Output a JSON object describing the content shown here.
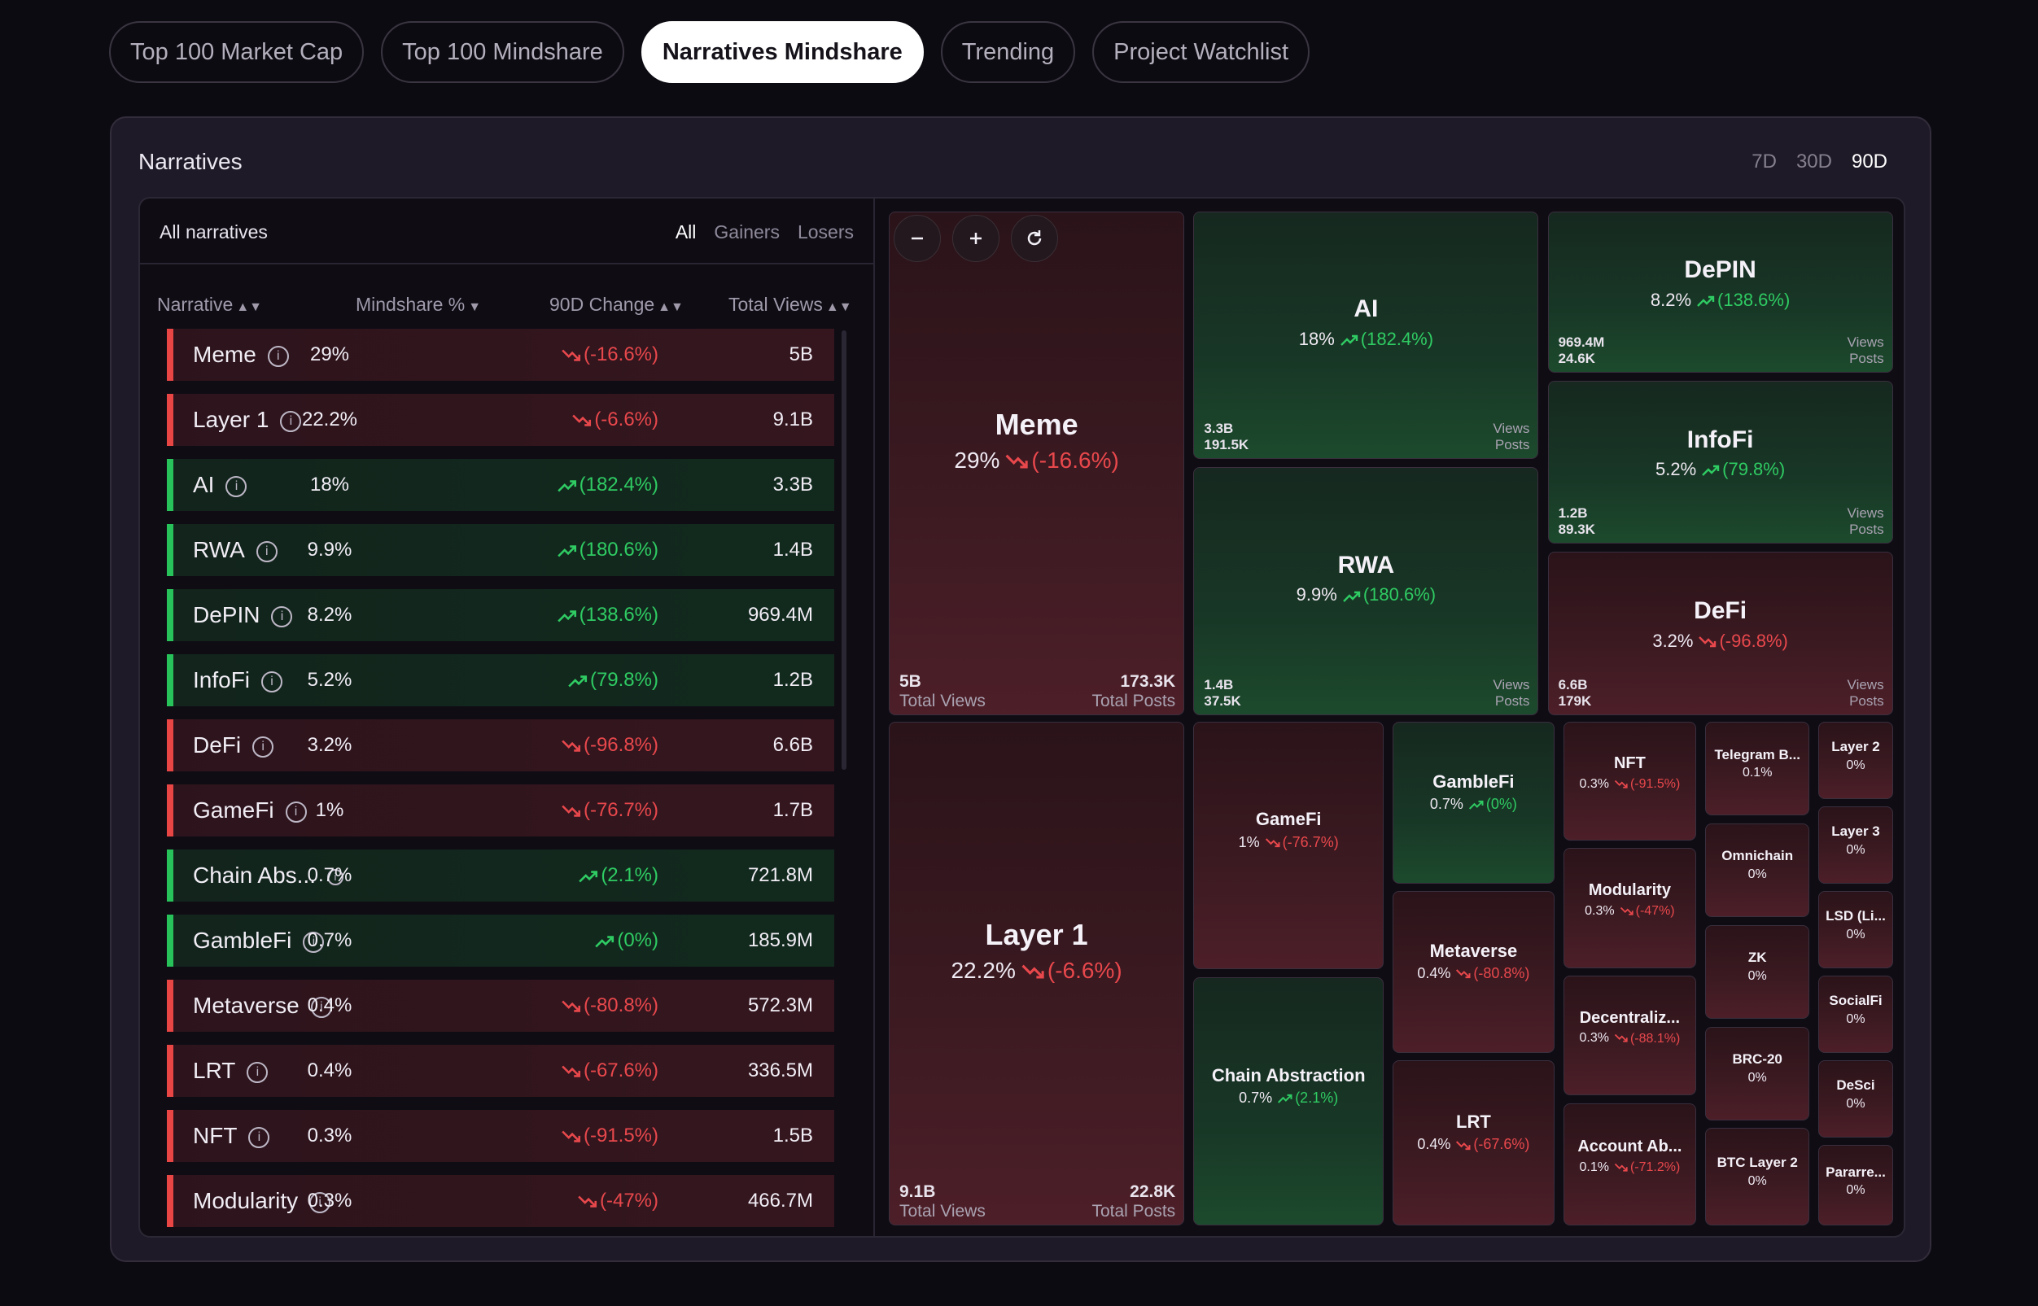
{
  "tabs": [
    {
      "label": "Top 100 Market Cap",
      "active": false
    },
    {
      "label": "Top 100 Mindshare",
      "active": false
    },
    {
      "label": "Narratives Mindshare",
      "active": true
    },
    {
      "label": "Trending",
      "active": false
    },
    {
      "label": "Project Watchlist",
      "active": false
    }
  ],
  "panel": {
    "title": "Narratives",
    "ranges": [
      "7D",
      "30D",
      "90D"
    ],
    "active_range": "90D"
  },
  "table": {
    "title": "All narratives",
    "filters": [
      "All",
      "Gainers",
      "Losers"
    ],
    "active_filter": "All",
    "columns": {
      "narrative": "Narrative",
      "mindshare": "Mindshare %",
      "change": "90D Change",
      "views": "Total Views"
    },
    "rows": [
      {
        "name": "Meme",
        "mindshare": "29%",
        "change": "(-16.6%)",
        "dir": "down",
        "views": "5B"
      },
      {
        "name": "Layer 1",
        "mindshare": "22.2%",
        "change": "(-6.6%)",
        "dir": "down",
        "views": "9.1B"
      },
      {
        "name": "AI",
        "mindshare": "18%",
        "change": "(182.4%)",
        "dir": "up",
        "views": "3.3B"
      },
      {
        "name": "RWA",
        "mindshare": "9.9%",
        "change": "(180.6%)",
        "dir": "up",
        "views": "1.4B"
      },
      {
        "name": "DePIN",
        "mindshare": "8.2%",
        "change": "(138.6%)",
        "dir": "up",
        "views": "969.4M"
      },
      {
        "name": "InfoFi",
        "mindshare": "5.2%",
        "change": "(79.8%)",
        "dir": "up",
        "views": "1.2B"
      },
      {
        "name": "DeFi",
        "mindshare": "3.2%",
        "change": "(-96.8%)",
        "dir": "down",
        "views": "6.6B"
      },
      {
        "name": "GameFi",
        "mindshare": "1%",
        "change": "(-76.7%)",
        "dir": "down",
        "views": "1.7B"
      },
      {
        "name": "Chain Abs...",
        "mindshare": "0.7%",
        "change": "(2.1%)",
        "dir": "up",
        "views": "721.8M",
        "small_info": true
      },
      {
        "name": "GambleFi",
        "mindshare": "0.7%",
        "change": "(0%)",
        "dir": "up",
        "views": "185.9M"
      },
      {
        "name": "Metaverse",
        "mindshare": "0.4%",
        "change": "(-80.8%)",
        "dir": "down",
        "views": "572.3M"
      },
      {
        "name": "LRT",
        "mindshare": "0.4%",
        "change": "(-67.6%)",
        "dir": "down",
        "views": "336.5M"
      },
      {
        "name": "NFT",
        "mindshare": "0.3%",
        "change": "(-91.5%)",
        "dir": "down",
        "views": "1.5B"
      },
      {
        "name": "Modularity",
        "mindshare": "0.3%",
        "change": "(-47%)",
        "dir": "down",
        "views": "466.7M"
      }
    ]
  },
  "treemap": {
    "labels": {
      "total_views": "Total Views",
      "total_posts": "Total Posts",
      "views": "Views",
      "posts": "Posts"
    },
    "tiles": [
      {
        "name": "Meme",
        "pct": "29%",
        "change": "(-16.6%)",
        "dir": "down",
        "views": "5B",
        "posts": "173.3K"
      },
      {
        "name": "Layer 1",
        "pct": "22.2%",
        "change": "(-6.6%)",
        "dir": "down",
        "views": "9.1B",
        "posts": "22.8K"
      },
      {
        "name": "AI",
        "pct": "18%",
        "change": "(182.4%)",
        "dir": "up",
        "views": "3.3B",
        "posts": "191.5K"
      },
      {
        "name": "RWA",
        "pct": "9.9%",
        "change": "(180.6%)",
        "dir": "up",
        "views": "1.4B",
        "posts": "37.5K"
      },
      {
        "name": "DePIN",
        "pct": "8.2%",
        "change": "(138.6%)",
        "dir": "up",
        "views": "969.4M",
        "posts": "24.6K"
      },
      {
        "name": "InfoFi",
        "pct": "5.2%",
        "change": "(79.8%)",
        "dir": "up",
        "views": "1.2B",
        "posts": "89.3K"
      },
      {
        "name": "DeFi",
        "pct": "3.2%",
        "change": "(-96.8%)",
        "dir": "down",
        "views": "6.6B",
        "posts": "179K"
      },
      {
        "name": "GameFi",
        "pct": "1%",
        "change": "(-76.7%)",
        "dir": "down"
      },
      {
        "name": "Chain Abstraction",
        "pct": "0.7%",
        "change": "(2.1%)",
        "dir": "up"
      },
      {
        "name": "GambleFi",
        "pct": "0.7%",
        "change": "(0%)",
        "dir": "up"
      },
      {
        "name": "Metaverse",
        "pct": "0.4%",
        "change": "(-80.8%)",
        "dir": "down"
      },
      {
        "name": "LRT",
        "pct": "0.4%",
        "change": "(-67.6%)",
        "dir": "down"
      },
      {
        "name": "NFT",
        "pct": "0.3%",
        "change": "(-91.5%)",
        "dir": "down"
      },
      {
        "name": "Modularity",
        "pct": "0.3%",
        "change": "(-47%)",
        "dir": "down"
      },
      {
        "name": "Decentraliz...",
        "pct": "0.3%",
        "change": "(-88.1%)",
        "dir": "down"
      },
      {
        "name": "Account Ab...",
        "pct": "0.1%",
        "change": "(-71.2%)",
        "dir": "down"
      },
      {
        "name": "Telegram B...",
        "pct": "0.1%"
      },
      {
        "name": "Omnichain",
        "pct": "0%"
      },
      {
        "name": "ZK",
        "pct": "0%"
      },
      {
        "name": "BRC-20",
        "pct": "0%"
      },
      {
        "name": "BTC Layer 2",
        "pct": "0%"
      },
      {
        "name": "Layer 2",
        "pct": "0%"
      },
      {
        "name": "Layer 3",
        "pct": "0%"
      },
      {
        "name": "LSD (Li...",
        "pct": "0%"
      },
      {
        "name": "SocialFi",
        "pct": "0%"
      },
      {
        "name": "DeSci",
        "pct": "0%"
      },
      {
        "name": "Pararre...",
        "pct": "0%"
      }
    ]
  },
  "colors": {
    "negative": "#e8484c",
    "positive": "#2fcb63",
    "background": "#0d0b12"
  }
}
